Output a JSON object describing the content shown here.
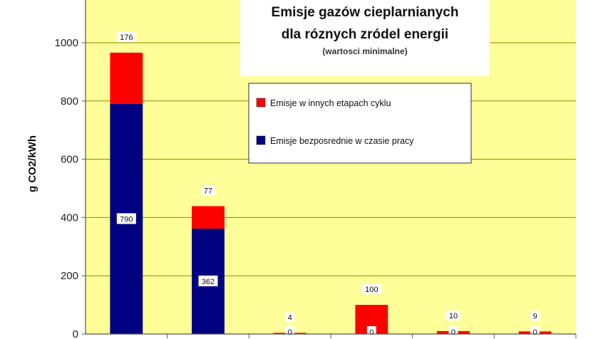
{
  "chart_data": {
    "type": "bar",
    "stacked": true,
    "title": "Emisje gazów cieplarnianych",
    "title_line2": "dla róznych zródel energii",
    "subtitle": "(wartosci minimalne)",
    "ylabel": "g CO2/kWh",
    "ylim": [
      0,
      1000
    ],
    "yticks": [
      0,
      200,
      400,
      600,
      800,
      1000
    ],
    "categories": [
      "",
      "",
      "",
      "",
      "",
      ""
    ],
    "series": [
      {
        "name": "Emisje bezposrednie w czasie pracy",
        "color": "#000080",
        "values": [
          790,
          362,
          0,
          0,
          0,
          0
        ]
      },
      {
        "name": "Emisje w innych etapach cyklu",
        "color": "#ff0000",
        "values": [
          176,
          77,
          4,
          100,
          10,
          9
        ]
      }
    ],
    "legend_position": "top-right",
    "plot_background": "#ffff99",
    "grid": true
  }
}
